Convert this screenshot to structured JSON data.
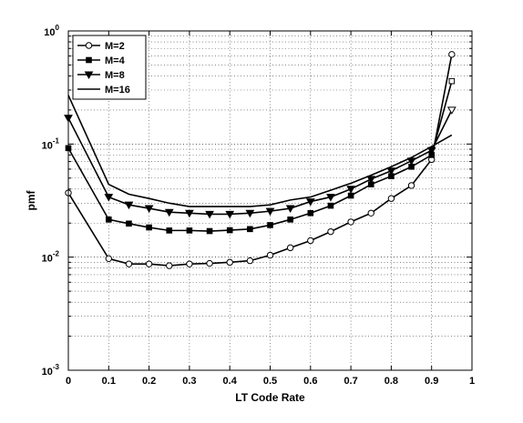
{
  "chart_data": {
    "type": "line",
    "title": "",
    "xlabel": "LT Code Rate",
    "ylabel": "pmf",
    "xlim": [
      0,
      1
    ],
    "ylim": [
      0.001,
      1
    ],
    "yscale": "log",
    "grid": "major-and-minor dotted",
    "legend_position": "top-left",
    "x_ticks": [
      "0",
      "0.1",
      "0.2",
      "0.3",
      "0.4",
      "0.5",
      "0.6",
      "0.7",
      "0.8",
      "0.9",
      "1"
    ],
    "y_ticks": [
      {
        "base": "10",
        "exp": "-3"
      },
      {
        "base": "10",
        "exp": "-2"
      },
      {
        "base": "10",
        "exp": "-1"
      },
      {
        "base": "10",
        "exp": "0"
      }
    ],
    "x": [
      0,
      0.1,
      0.15,
      0.2,
      0.25,
      0.3,
      0.35,
      0.4,
      0.45,
      0.5,
      0.55,
      0.6,
      0.65,
      0.7,
      0.75,
      0.8,
      0.85,
      0.9,
      0.95
    ],
    "series": [
      {
        "name": "M=2",
        "marker": "circle",
        "values": [
          0.037,
          0.0097,
          0.0087,
          0.0087,
          0.0084,
          0.0087,
          0.0088,
          0.009,
          0.0093,
          0.0104,
          0.0121,
          0.014,
          0.0168,
          0.0205,
          0.0245,
          0.033,
          0.043,
          0.073,
          0.62
        ]
      },
      {
        "name": "M=4",
        "marker": "square",
        "values": [
          0.092,
          0.0215,
          0.0198,
          0.0183,
          0.0172,
          0.0172,
          0.017,
          0.0173,
          0.0177,
          0.0192,
          0.0215,
          0.0245,
          0.0285,
          0.035,
          0.044,
          0.052,
          0.063,
          0.08,
          0.36
        ]
      },
      {
        "name": "M=8",
        "marker": "triangle-down",
        "values": [
          0.17,
          0.034,
          0.029,
          0.027,
          0.025,
          0.0245,
          0.024,
          0.024,
          0.0245,
          0.0255,
          0.027,
          0.031,
          0.034,
          0.04,
          0.049,
          0.058,
          0.071,
          0.088,
          0.2
        ]
      },
      {
        "name": "M=16",
        "marker": "none",
        "values": [
          0.27,
          0.044,
          0.036,
          0.033,
          0.03,
          0.028,
          0.028,
          0.028,
          0.028,
          0.029,
          0.032,
          0.034,
          0.039,
          0.045,
          0.053,
          0.063,
          0.076,
          0.095,
          0.12
        ]
      }
    ]
  }
}
